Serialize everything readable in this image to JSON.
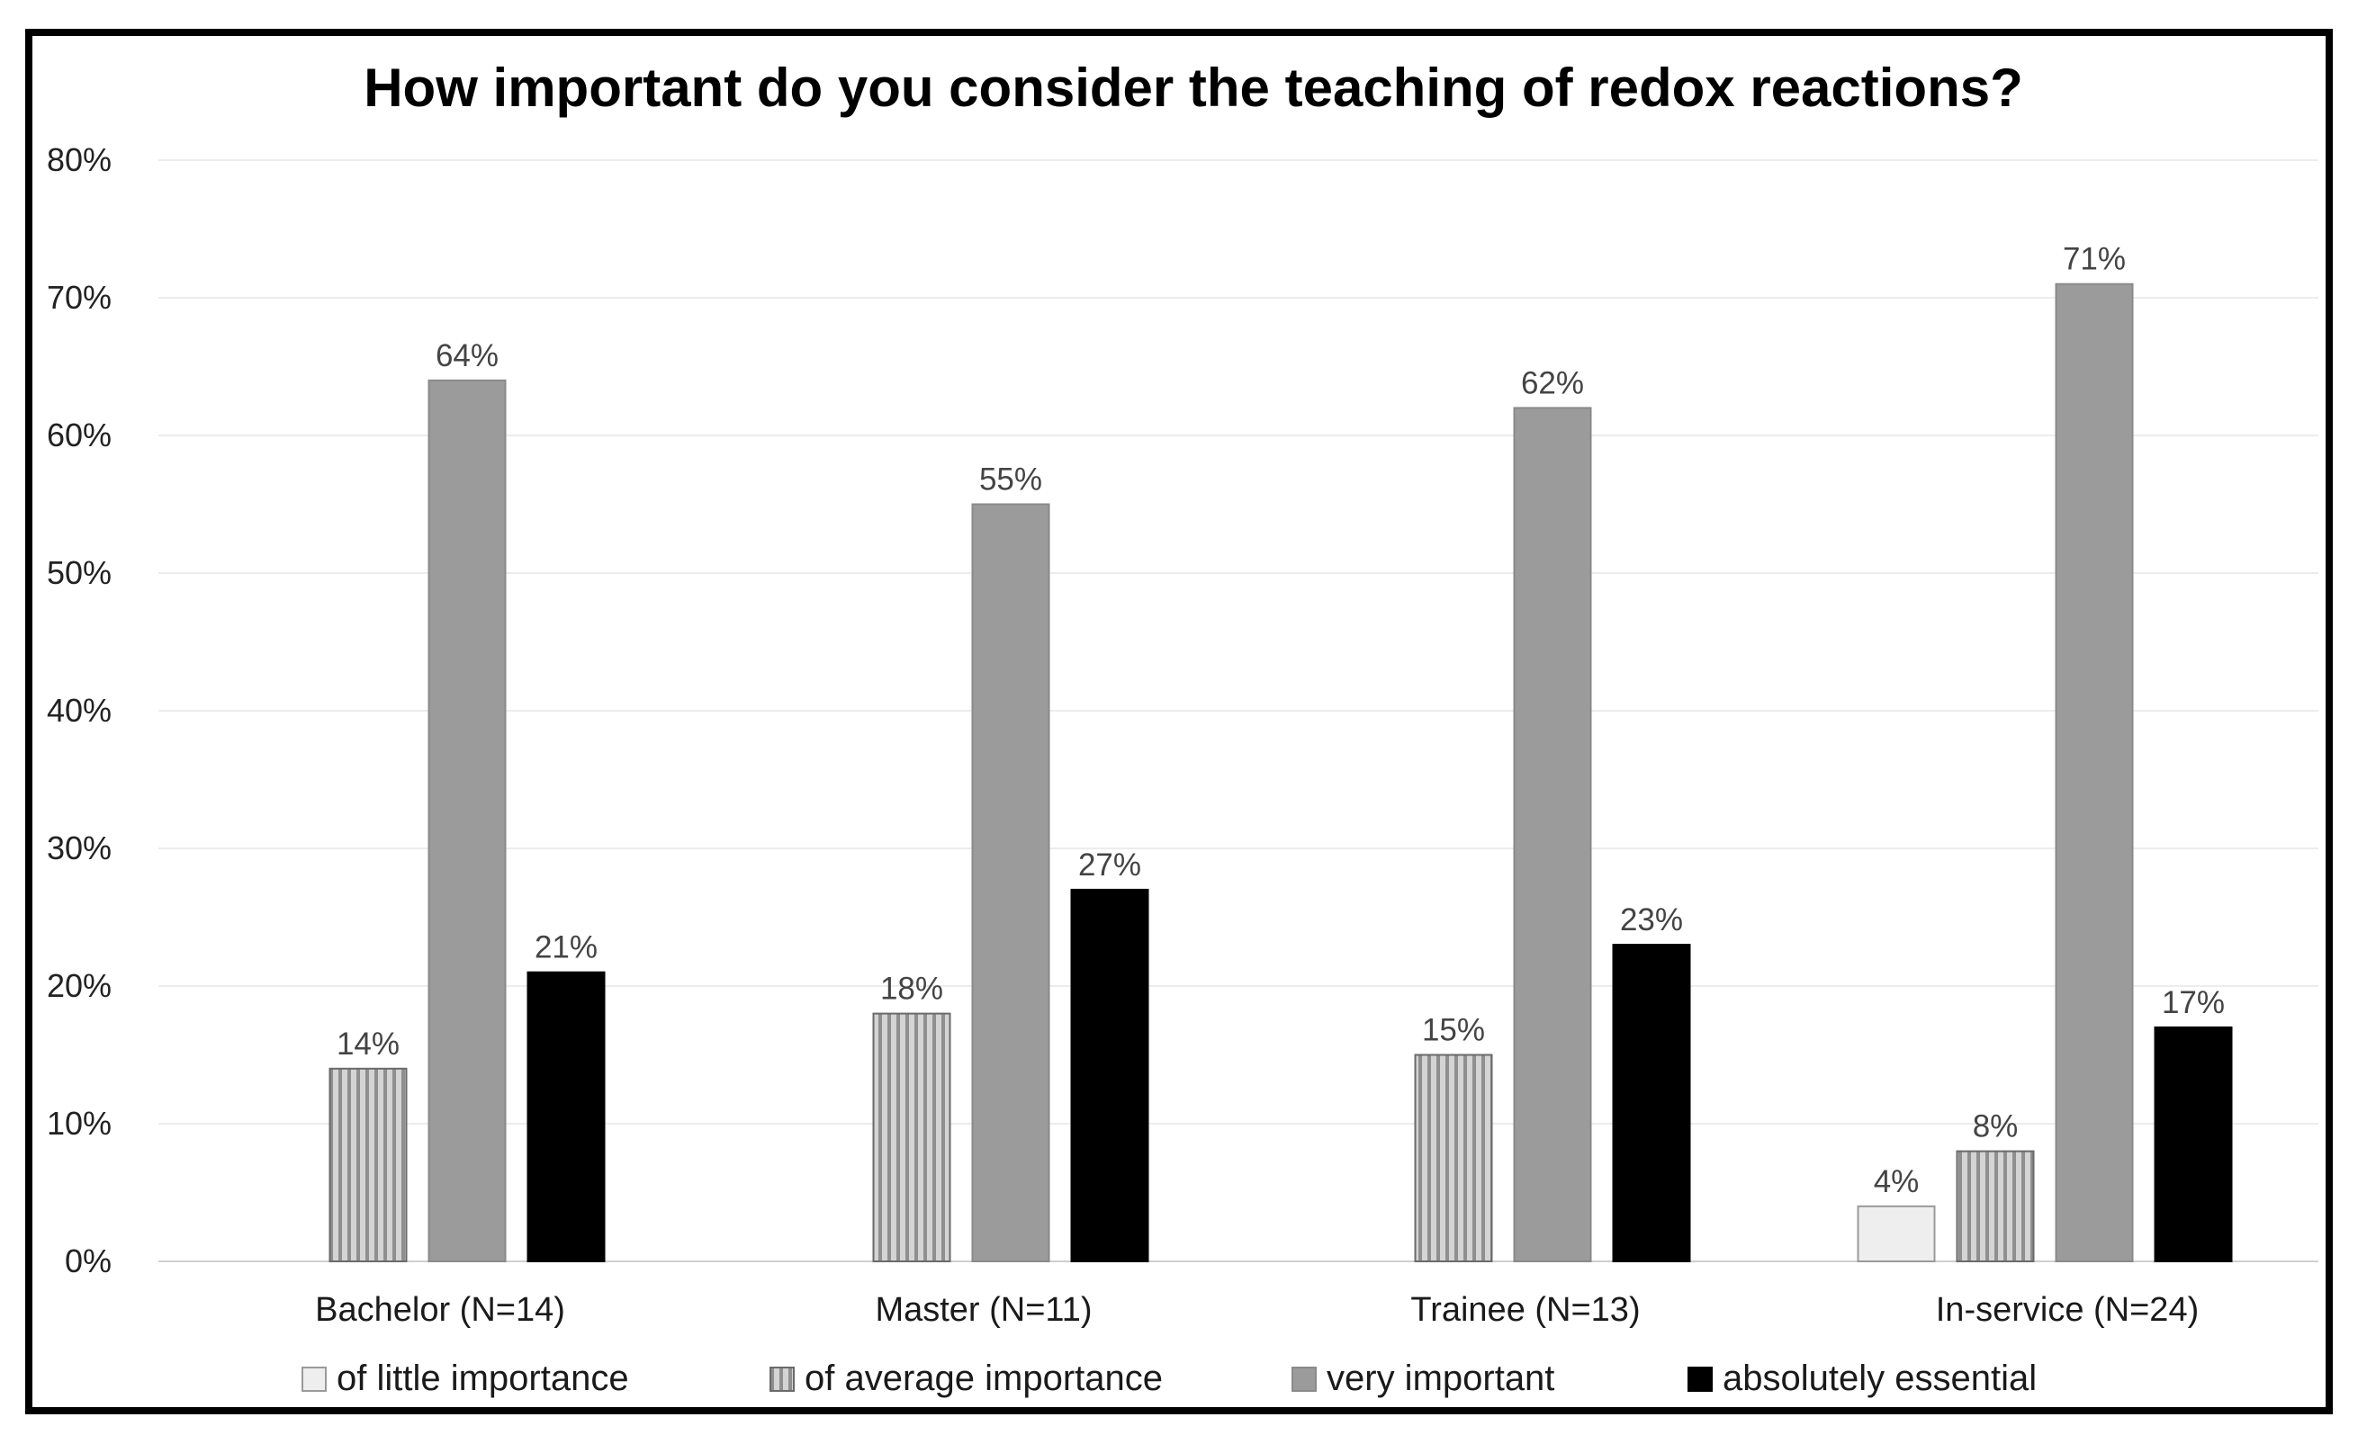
{
  "chart_data": {
    "type": "bar",
    "title": "How important do you consider the teaching of redox reactions?",
    "xlabel": "",
    "ylabel": "",
    "ylim": [
      0,
      80
    ],
    "y_ticks": [
      "0%",
      "10%",
      "20%",
      "30%",
      "40%",
      "50%",
      "60%",
      "70%",
      "80%"
    ],
    "grid": true,
    "legend_position": "bottom",
    "categories": [
      "Bachelor (N=14)",
      "Master (N=11)",
      "Trainee (N=13)",
      "In-service (N=24)"
    ],
    "series": [
      {
        "name": "of little importance",
        "color": "#eeeeee",
        "pattern": "solid-light",
        "values": [
          null,
          null,
          null,
          4
        ],
        "labels": [
          "",
          "",
          "",
          "4%"
        ]
      },
      {
        "name": "of average importance",
        "color": "#c8c8c8",
        "pattern": "vertical-stripes",
        "values": [
          14,
          18,
          15,
          8
        ],
        "labels": [
          "14%",
          "18%",
          "15%",
          "8%"
        ]
      },
      {
        "name": "very important",
        "color": "#9b9b9b",
        "pattern": "solid",
        "values": [
          64,
          55,
          62,
          71
        ],
        "labels": [
          "64%",
          "55%",
          "62%",
          "71%"
        ]
      },
      {
        "name": "absolutely essential",
        "color": "#000000",
        "pattern": "solid",
        "values": [
          21,
          27,
          23,
          17
        ],
        "labels": [
          "21%",
          "27%",
          "23%",
          "17%"
        ]
      }
    ]
  }
}
